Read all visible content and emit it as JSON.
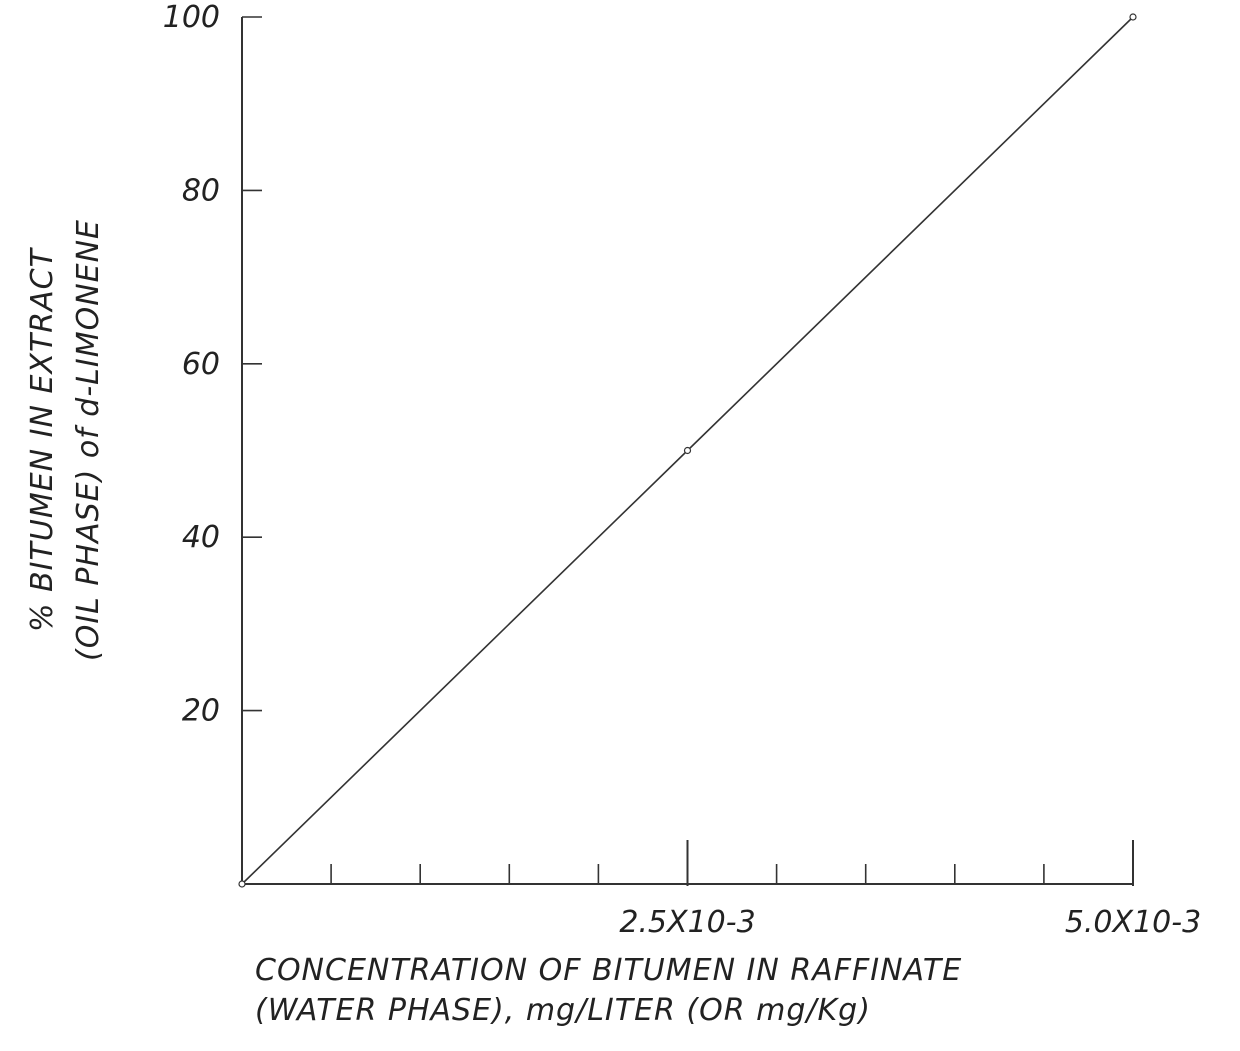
{
  "chart_data": {
    "type": "line",
    "title": "",
    "xlabel_lines": [
      "CONCENTRATION OF BITUMEN IN RAFFINATE",
      "(WATER PHASE), mg/LITER (OR mg/Kg)"
    ],
    "ylabel_lines": [
      "% BITUMEN IN EXTRACT",
      "(OIL PHASE) of d-LIMONENE"
    ],
    "xlim": [
      0,
      0.005
    ],
    "ylim": [
      0,
      100
    ],
    "x_tick_labels": [
      {
        "value": 0.0025,
        "label": "2.5X10-3"
      },
      {
        "value": 0.005,
        "label": "5.0X10-3"
      }
    ],
    "x_minor_ticks": [
      0.0005,
      0.001,
      0.0015,
      0.002,
      0.0025,
      0.003,
      0.0035,
      0.004,
      0.0045,
      0.005
    ],
    "y_ticks": [
      {
        "value": 20,
        "label": "20"
      },
      {
        "value": 40,
        "label": "40"
      },
      {
        "value": 60,
        "label": "60"
      },
      {
        "value": 80,
        "label": "80"
      },
      {
        "value": 100,
        "label": "100"
      }
    ],
    "series": [
      {
        "x": [
          0,
          0.0025,
          0.005
        ],
        "y": [
          0,
          50,
          100
        ]
      }
    ],
    "grid": false,
    "line_color": "#333333"
  }
}
